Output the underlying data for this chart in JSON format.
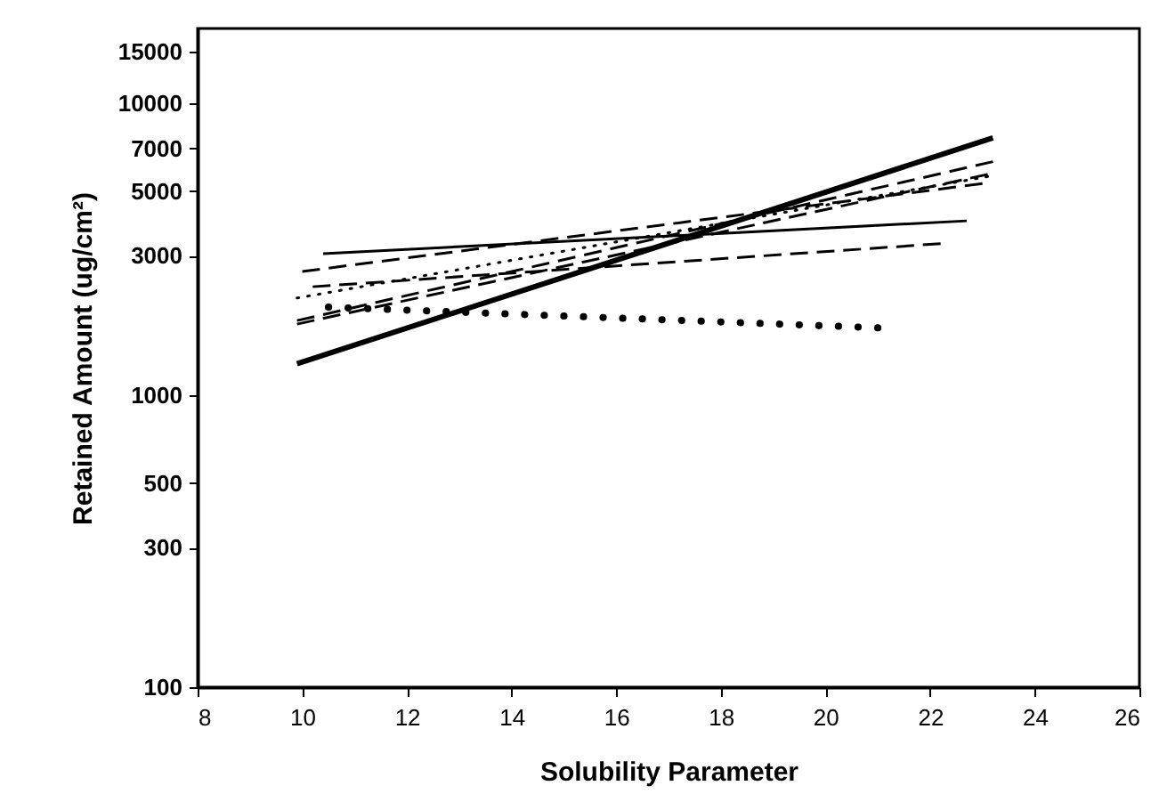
{
  "chart_data": {
    "type": "line",
    "xlabel": "Solubility Parameter",
    "ylabel": "Retained Amount (ug/cm²)",
    "log": "y",
    "xlim": [
      8,
      26
    ],
    "xticks": [
      8,
      10,
      12,
      14,
      16,
      18,
      20,
      22,
      24,
      26
    ],
    "ylim": [
      100,
      18000
    ],
    "yticks": [
      100,
      300,
      500,
      1000,
      3000,
      5000,
      7000,
      10000,
      15000
    ],
    "grid": false,
    "marker": "none",
    "series": [
      {
        "color": "#000000",
        "line_style": "solid",
        "x": [
          9.9,
          23.2
        ],
        "values": [
          1280,
          7600
        ]
      },
      {
        "color": "#000000",
        "line_style": "solid",
        "x": [
          10.4,
          22.7
        ],
        "values": [
          3050,
          3950
        ]
      },
      {
        "color": "#000000",
        "line_style": "dashed",
        "x": [
          10.0,
          23.0
        ],
        "values": [
          2650,
          5300
        ]
      },
      {
        "color": "#000000",
        "line_style": "dashed",
        "x": [
          10.2,
          22.2
        ],
        "values": [
          2350,
          3300
        ]
      },
      {
        "color": "#000000",
        "line_style": "dotted",
        "x": [
          9.9,
          23.1
        ],
        "values": [
          2150,
          5600
        ]
      },
      {
        "color": "#000000",
        "line_style": "dotted",
        "x": [
          10.5,
          21.0
        ],
        "values": [
          2000,
          1700
        ]
      },
      {
        "color": "#000000",
        "line_style": "dashed",
        "x": [
          9.9,
          23.2
        ],
        "values": [
          1800,
          6300
        ]
      },
      {
        "color": "#000000",
        "line_style": "dashed",
        "x": [
          9.9,
          23.1
        ],
        "values": [
          1750,
          5700
        ]
      }
    ]
  }
}
